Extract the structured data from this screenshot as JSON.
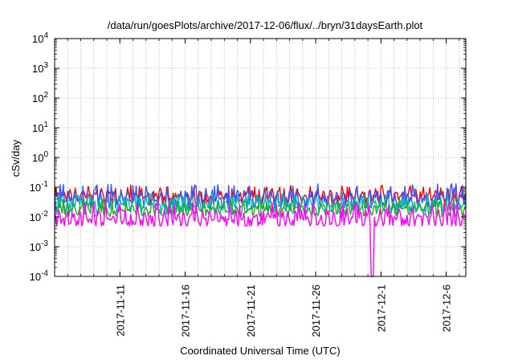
{
  "chart_data": {
    "type": "line",
    "title": "/data/run/goesPlots/archive/2017-12-06/flux/../bryn/31daysEarth.plot",
    "xlabel": "Coordinated Universal Time (UTC)",
    "ylabel": "cSv/day",
    "x_range": [
      "2017-11-06",
      "2017-12-07T12:00"
    ],
    "x_ticks": [
      "2017-11-11",
      "2017-11-16",
      "2017-11-21",
      "2017-11-26",
      "2017-12-1",
      "2017-12-6"
    ],
    "x_minor_step_days": 1,
    "y_scale": "log",
    "ylim": [
      0.0001,
      10000
    ],
    "y_ticks": [
      {
        "value": 0.0001,
        "base": "10",
        "exp": "-4"
      },
      {
        "value": 0.001,
        "base": "10",
        "exp": "-3"
      },
      {
        "value": 0.01,
        "base": "10",
        "exp": "-2"
      },
      {
        "value": 0.1,
        "base": "10",
        "exp": "-1"
      },
      {
        "value": 1,
        "base": "10",
        "exp": "0"
      },
      {
        "value": 10,
        "base": "10",
        "exp": "1"
      },
      {
        "value": 100,
        "base": "10",
        "exp": "2"
      },
      {
        "value": 1000,
        "base": "10",
        "exp": "3"
      },
      {
        "value": 10000,
        "base": "10",
        "exp": "4"
      }
    ],
    "grid": true,
    "legend": "none",
    "series": [
      {
        "color": "#ff0000",
        "typical": 0.05,
        "low": 0.025,
        "high": 0.12,
        "period_hours": 12
      },
      {
        "color": "#3355ff",
        "typical": 0.04,
        "low": 0.02,
        "high": 0.13,
        "period_hours": 12
      },
      {
        "color": "#00bbbb",
        "typical": 0.025,
        "low": 0.012,
        "high": 0.06,
        "period_hours": 12
      },
      {
        "color": "#22aa22",
        "typical": 0.018,
        "low": 0.01,
        "high": 0.04,
        "period_hours": 12
      },
      {
        "color": "#ff00ff",
        "typical": 0.009,
        "low": 0.005,
        "high": 0.03,
        "period_hours": 12,
        "dropout_date": "2017-11-30T08:00",
        "dropout_min": 0.0001
      }
    ]
  }
}
